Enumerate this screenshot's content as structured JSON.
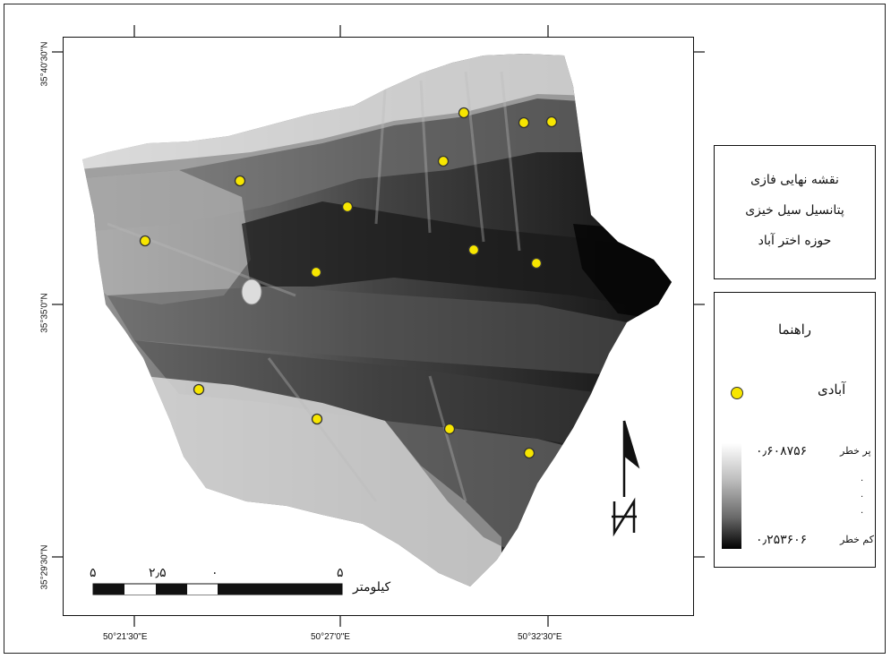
{
  "map": {
    "top_ticks": [
      "50°21'30\"E",
      "50°27'0\"E",
      "50°32'30\"E"
    ],
    "bottom_labels": [
      "50°21'30\"E",
      "50°27'0\"E",
      "50°32'30\"E"
    ],
    "left_labels": [
      "35°40'30\"N",
      "35°35'0\"N",
      "35°29'30\"N"
    ],
    "settlement_count": 15,
    "colors": {
      "settlement_fill": "#f7e600",
      "settlement_stroke": "#333333",
      "ramp_high": "#ffffff",
      "ramp_low": "#000000"
    }
  },
  "title_box": {
    "line1": "نقشه نهایی فازی",
    "line2": "پتانسیل سیل خیزی",
    "line3": "حوزه اختر آباد"
  },
  "legend": {
    "title": "راهنما",
    "settlement_label": "آبادی",
    "high_value": "۰٫۶۰۸۷۵۶",
    "high_label": "پر خطر",
    "low_value": "۰٫۲۵۳۶۰۶",
    "low_label": "کم خطر"
  },
  "scale_bar": {
    "labels": [
      "۵",
      "۲٫۵",
      "۰",
      "۵"
    ],
    "unit": "کیلومتر"
  },
  "north_arrow": {
    "letter": "N",
    "icon": "north-arrow-icon"
  }
}
